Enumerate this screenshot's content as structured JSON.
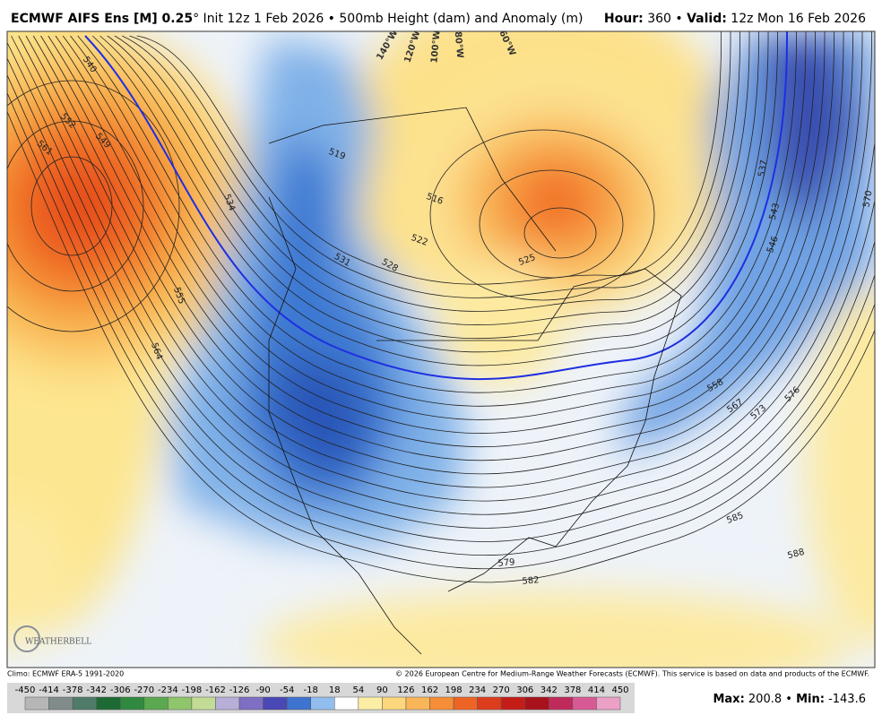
{
  "header": {
    "title": "ECMWF AIFS Ens [M] 0.25",
    "title_rest": "° Init 12z 1 Feb 2026 • 500mb Height (dam) and Anomaly (m)",
    "hour_label": "Hour:",
    "hour": 360,
    "separator": "•",
    "valid_label": "Valid:",
    "valid": "12z Mon 16 Feb 2026"
  },
  "map": {
    "longitude_labels": [
      "140°W",
      "120°W",
      "100°W",
      "80°W",
      "60°W"
    ],
    "contour_labels": [
      540,
      552,
      549,
      561,
      534,
      555,
      564,
      519,
      531,
      528,
      516,
      522,
      525,
      537,
      543,
      546,
      570,
      558,
      567,
      573,
      576,
      585,
      579,
      582,
      588
    ]
  },
  "footer": {
    "climo": "Climo: ECMWF ERA-5 1991-2020",
    "copyright": "© 2026 European Centre for Medium-Range Weather Forecasts (ECMWF). This service is based on data and products of the ECMWF.",
    "logo": "WEATHERBELL"
  },
  "colorbar": {
    "ticks": [
      -450,
      -414,
      -378,
      -342,
      -306,
      -270,
      -234,
      -198,
      -162,
      -126,
      -90,
      -54,
      -18,
      18,
      54,
      90,
      126,
      162,
      198,
      234,
      270,
      306,
      342,
      378,
      414,
      450
    ]
  },
  "stats": {
    "max_label": "Max:",
    "max": 200.8,
    "separator": "•",
    "min_label": "Min:",
    "min": -143.6
  }
}
